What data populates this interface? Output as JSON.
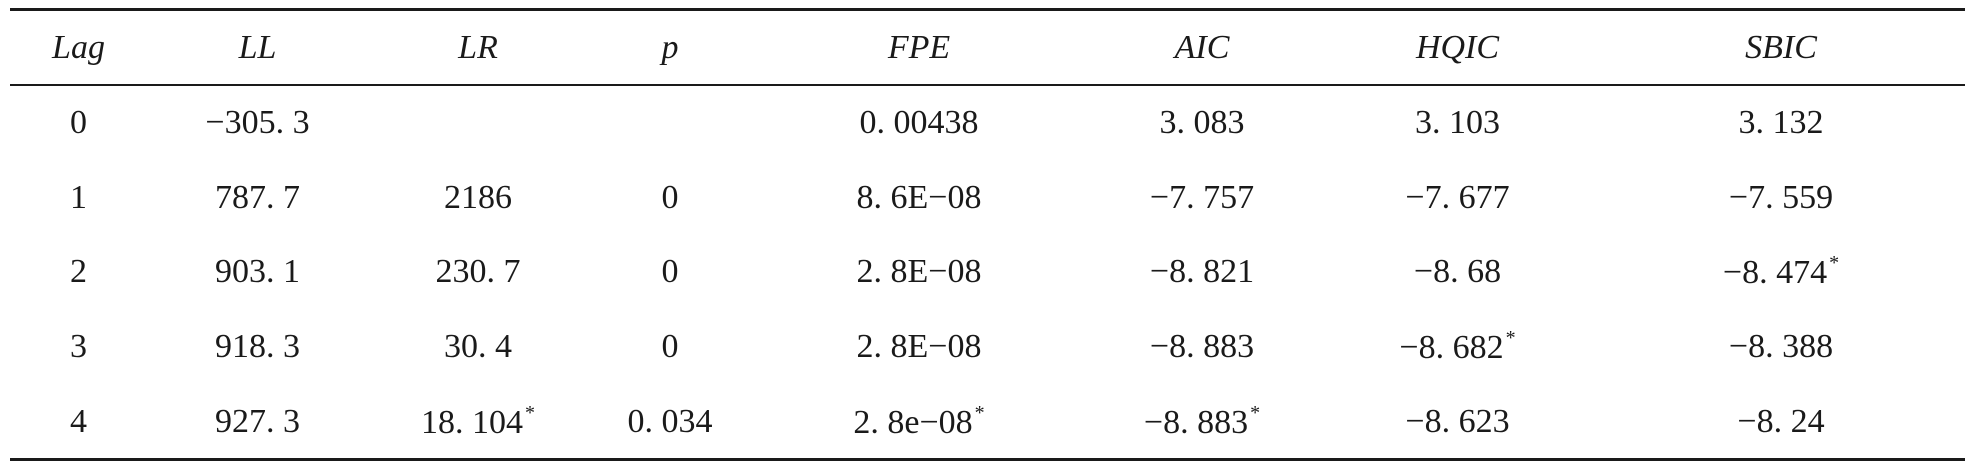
{
  "table": {
    "headers": [
      "Lag",
      "LL",
      "LR",
      "p",
      "FPE",
      "AIC",
      "HQIC",
      "SBIC"
    ],
    "rows": [
      [
        "0",
        "−305. 3",
        "",
        "",
        "0. 00438",
        "3. 083",
        "3. 103",
        "3. 132"
      ],
      [
        "1",
        "787. 7",
        "2186",
        "0",
        "8. 6E−08",
        "−7. 757",
        "−7. 677",
        "−7. 559"
      ],
      [
        "2",
        "903. 1",
        "230. 7",
        "0",
        "2. 8E−08",
        "−8. 821",
        "−8. 68",
        "−8. 474"
      ],
      [
        "3",
        "918. 3",
        "30. 4",
        "0",
        "2. 8E−08",
        "−8. 883",
        "−8. 682",
        "−8. 388"
      ],
      [
        "4",
        "927. 3",
        "18. 104",
        "0. 034",
        "2. 8e−08",
        "−8. 883",
        "−8. 623",
        "−8. 24"
      ]
    ],
    "marker": "*"
  }
}
